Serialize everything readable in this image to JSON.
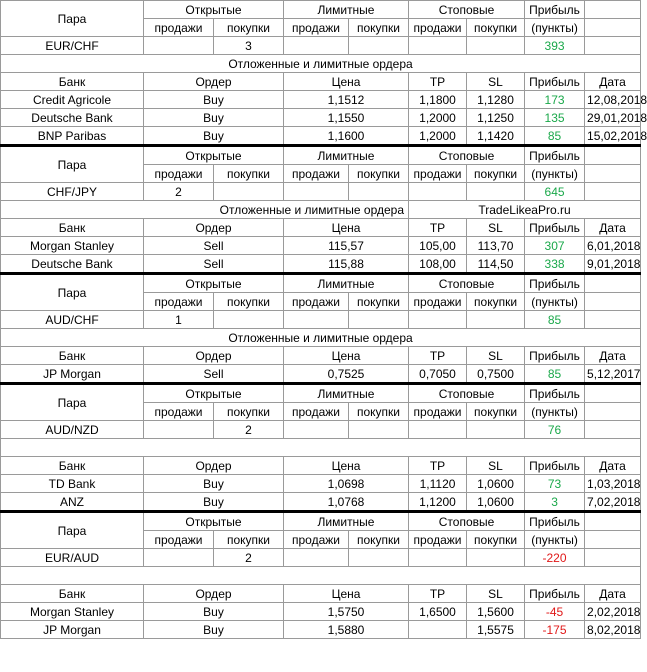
{
  "h": {
    "pair": "Пара",
    "open": "Открытые",
    "limit": "Лимитные",
    "stop": "Стоповые",
    "profit": "Прибыль",
    "sell": "продажи",
    "buy": "покупки",
    "points": "(пункты)",
    "bank": "Банк",
    "order": "Ордер",
    "price": "Цена",
    "tp": "TP",
    "sl": "SL",
    "date": "Дата",
    "pending": "Отложенные и лимитные ордера",
    "watermark": "TradeLikeaPro.ru"
  },
  "b1": {
    "pair": "EUR/CHF",
    "open_sell": "",
    "open_buy": "3",
    "profit": "393",
    "orders": [
      {
        "bank": "Credit Agricole",
        "order": "Buy",
        "price": "1,1512",
        "tp": "1,1800",
        "sl": "1,1280",
        "profit": "173",
        "date": "12,08,2018"
      },
      {
        "bank": "Deutsche Bank",
        "order": "Buy",
        "price": "1,1550",
        "tp": "1,2000",
        "sl": "1,1250",
        "profit": "135",
        "date": "29,01,2018"
      },
      {
        "bank": "BNP Paribas",
        "order": "Buy",
        "price": "1,1600",
        "tp": "1,2000",
        "sl": "1,1420",
        "profit": "85",
        "date": "15,02,2018"
      }
    ]
  },
  "b2": {
    "pair": "CHF/JPY",
    "open_sell": "2",
    "open_buy": "",
    "profit": "645",
    "orders": [
      {
        "bank": "Morgan Stanley",
        "order": "Sell",
        "price": "115,57",
        "tp": "105,00",
        "sl": "113,70",
        "profit": "307",
        "date": "6,01,2018"
      },
      {
        "bank": "Deutsche Bank",
        "order": "Sell",
        "price": "115,88",
        "tp": "108,00",
        "sl": "114,50",
        "profit": "338",
        "date": "9,01,2018"
      }
    ]
  },
  "b3": {
    "pair": "AUD/CHF",
    "open_sell": "1",
    "open_buy": "",
    "profit": "85",
    "orders": [
      {
        "bank": "JP Morgan",
        "order": "Sell",
        "price": "0,7525",
        "tp": "0,7050",
        "sl": "0,7500",
        "profit": "85",
        "date": "5,12,2017"
      }
    ]
  },
  "b4": {
    "pair": "AUD/NZD",
    "open_sell": "",
    "open_buy": "2",
    "profit": "76",
    "orders": [
      {
        "bank": "TD Bank",
        "order": "Buy",
        "price": "1,0698",
        "tp": "1,1120",
        "sl": "1,0600",
        "profit": "73",
        "date": "1,03,2018"
      },
      {
        "bank": "ANZ",
        "order": "Buy",
        "price": "1,0768",
        "tp": "1,1200",
        "sl": "1,0600",
        "profit": "3",
        "date": "7,02,2018"
      }
    ]
  },
  "b5": {
    "pair": "EUR/AUD",
    "open_sell": "",
    "open_buy": "2",
    "profit": "-220",
    "orders": [
      {
        "bank": "Morgan Stanley",
        "order": "Buy",
        "price": "1,5750",
        "tp": "1,6500",
        "sl": "1,5600",
        "profit": "-45",
        "date": "2,02,2018"
      },
      {
        "bank": "JP Morgan",
        "order": "Buy",
        "price": "1,5880",
        "tp": "",
        "sl": "1,5575",
        "profit": "-175",
        "date": "8,02,2018"
      }
    ]
  },
  "colors": {
    "positive": "#1aa84a",
    "negative": "#e01818",
    "grid": "#9a9a9a"
  }
}
